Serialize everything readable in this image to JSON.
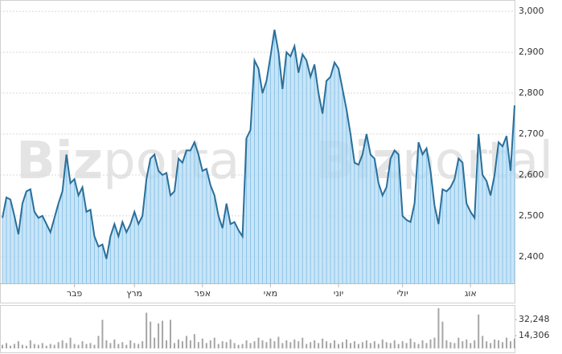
{
  "watermark": {
    "bold": "Biz",
    "light": "portal"
  },
  "chart_data": [
    {
      "type": "area",
      "color": "#2a6f9a",
      "fill": "#b5dcf4",
      "grid": true,
      "categories": [
        null,
        null,
        null,
        null,
        null,
        null,
        null,
        null,
        null,
        null,
        null,
        null,
        null,
        null,
        null,
        null,
        null,
        null,
        "פבר",
        null,
        null,
        null,
        null,
        null,
        null,
        null,
        null,
        null,
        null,
        null,
        null,
        null,
        null,
        "מרץ",
        null,
        null,
        null,
        null,
        null,
        null,
        null,
        null,
        null,
        null,
        null,
        null,
        null,
        null,
        null,
        null,
        "אפר",
        null,
        null,
        null,
        null,
        null,
        null,
        null,
        null,
        null,
        null,
        null,
        null,
        null,
        null,
        null,
        null,
        "מאי",
        null,
        null,
        null,
        null,
        null,
        null,
        null,
        null,
        null,
        null,
        null,
        null,
        null,
        null,
        null,
        null,
        "יוני",
        null,
        null,
        null,
        null,
        null,
        null,
        null,
        null,
        null,
        null,
        null,
        null,
        null,
        null,
        null,
        "יולי",
        null,
        null,
        null,
        null,
        null,
        null,
        null,
        null,
        null,
        null,
        null,
        null,
        null,
        null,
        null,
        null,
        "אוג",
        null,
        null,
        null,
        null,
        null,
        null,
        null,
        null,
        null,
        null,
        null
      ],
      "values": [
        2495,
        2545,
        2540,
        2500,
        2455,
        2530,
        2560,
        2565,
        2510,
        2495,
        2500,
        2480,
        2460,
        2495,
        2530,
        2560,
        2650,
        2580,
        2590,
        2550,
        2570,
        2510,
        2515,
        2450,
        2425,
        2430,
        2395,
        2450,
        2480,
        2450,
        2485,
        2460,
        2480,
        2510,
        2480,
        2500,
        2590,
        2640,
        2650,
        2610,
        2600,
        2605,
        2550,
        2560,
        2640,
        2630,
        2660,
        2660,
        2680,
        2650,
        2610,
        2615,
        2575,
        2550,
        2500,
        2470,
        2530,
        2480,
        2485,
        2465,
        2450,
        2690,
        2710,
        2880,
        2860,
        2800,
        2830,
        2890,
        2955,
        2900,
        2810,
        2900,
        2890,
        2915,
        2850,
        2895,
        2880,
        2840,
        2870,
        2800,
        2750,
        2830,
        2840,
        2875,
        2860,
        2810,
        2760,
        2700,
        2630,
        2625,
        2650,
        2700,
        2650,
        2640,
        2580,
        2550,
        2570,
        2640,
        2660,
        2650,
        2500,
        2490,
        2485,
        2530,
        2680,
        2650,
        2665,
        2610,
        2525,
        2480,
        2565,
        2560,
        2570,
        2590,
        2640,
        2630,
        2530,
        2510,
        2495,
        2700,
        2600,
        2585,
        2550,
        2600,
        2680,
        2670,
        2695,
        2610,
        2770
      ],
      "ylim": [
        2335,
        3012
      ],
      "yticks": [
        {
          "value": 2400,
          "label": "2,400"
        },
        {
          "value": 2500,
          "label": "2,500"
        },
        {
          "value": 2600,
          "label": "2,600"
        },
        {
          "value": 2700,
          "label": "2,700"
        },
        {
          "value": 2800,
          "label": "2,800"
        },
        {
          "value": 2900,
          "label": "2,900"
        },
        {
          "value": 3000,
          "label": "3,000"
        }
      ]
    },
    {
      "type": "bar",
      "color": "#a6a6a6",
      "values": [
        4000,
        6000,
        3000,
        5000,
        8000,
        4000,
        3000,
        9000,
        5000,
        4000,
        6000,
        3000,
        5000,
        4000,
        7000,
        9000,
        6000,
        12000,
        5000,
        4000,
        8000,
        5000,
        6000,
        4000,
        14000,
        32000,
        9000,
        6000,
        10000,
        5000,
        7000,
        4000,
        9000,
        6000,
        5000,
        8000,
        40000,
        30000,
        12000,
        28000,
        31000,
        9000,
        32000,
        6000,
        10000,
        8000,
        14000,
        9000,
        16000,
        7000,
        11000,
        6000,
        9000,
        12000,
        5000,
        8000,
        7000,
        10000,
        6000,
        4000,
        5000,
        9000,
        6000,
        8000,
        12000,
        9000,
        7000,
        11000,
        8000,
        13000,
        6000,
        9000,
        7000,
        10000,
        8000,
        12000,
        5000,
        7000,
        9000,
        6000,
        11000,
        8000,
        6000,
        9000,
        5000,
        7000,
        10000,
        6000,
        8000,
        5000,
        7000,
        9000,
        6000,
        8000,
        5000,
        10000,
        7000,
        6000,
        9000,
        5000,
        8000,
        6000,
        11000,
        7000,
        5000,
        9000,
        6000,
        10000,
        12000,
        45000,
        30000,
        9000,
        7000,
        6000,
        12000,
        8000,
        10000,
        6000,
        9000,
        38000,
        14000,
        8000,
        6000,
        10000,
        9000,
        7000,
        12000,
        8000,
        11000
      ],
      "ylim": [
        0,
        45000
      ],
      "yticks": [
        {
          "value": 14306,
          "label": "14,306"
        },
        {
          "value": 32248,
          "label": "32,248"
        }
      ]
    }
  ]
}
